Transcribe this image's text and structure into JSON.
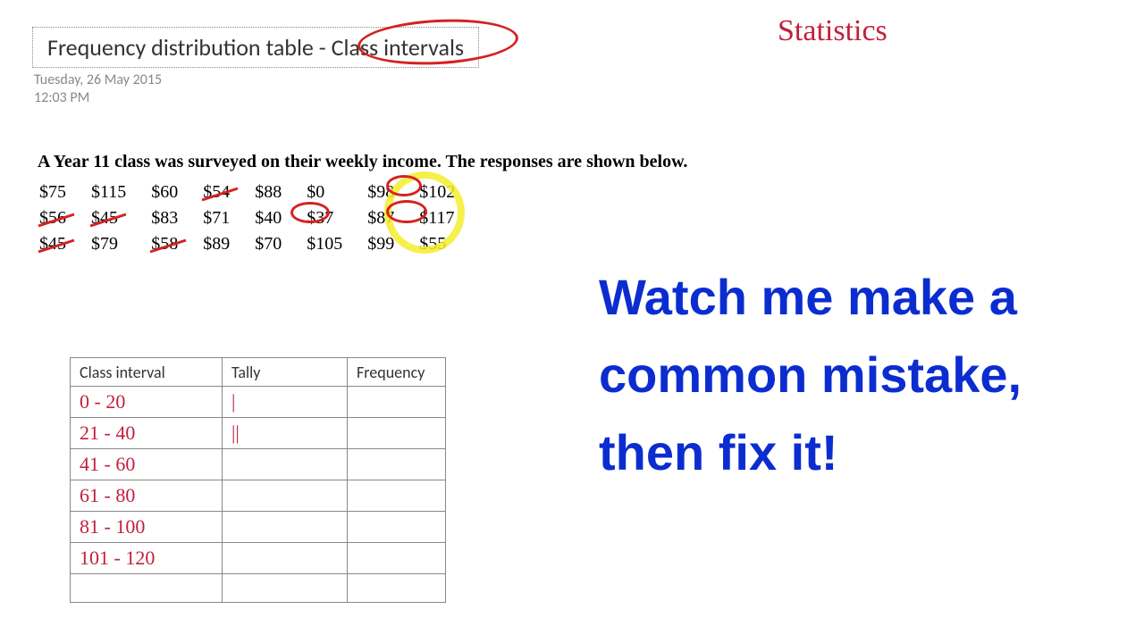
{
  "header": {
    "title": "Frequency distribution table - Class intervals",
    "date": "Tuesday, 26 May 2015",
    "time": "12:03 PM"
  },
  "topic_handwritten": "Statistics",
  "question": "A Year 11 class was surveyed on their weekly income. The responses are shown below.",
  "data_rows": [
    [
      "$75",
      "$115",
      "$60",
      "$54",
      "$88",
      "$0",
      "$98",
      "$102"
    ],
    [
      "$56",
      "$45",
      "$83",
      "$71",
      "$40",
      "$37",
      "$87",
      "$117"
    ],
    [
      "$45",
      "$79",
      "$58",
      "$89",
      "$70",
      "$105",
      "$99",
      "$55"
    ]
  ],
  "struck": [
    [
      2,
      0
    ],
    [
      1,
      0
    ],
    [
      1,
      1
    ],
    [
      2,
      2
    ],
    [
      0,
      3
    ]
  ],
  "annotations": {
    "red_circle_title": {
      "color": "#d4221f"
    },
    "red_oval_40": {
      "color": "#d4221f"
    },
    "red_oval_37": {
      "color": "#d4221f"
    },
    "yellow_ring": {
      "color": "#f4ed2b"
    }
  },
  "freq_table": {
    "headers": [
      "Class interval",
      "Tally",
      "Frequency"
    ],
    "rows": [
      {
        "interval": "0 - 20",
        "tally": "|",
        "freq": ""
      },
      {
        "interval": "21 - 40",
        "tally": "||",
        "freq": ""
      },
      {
        "interval": "41 - 60",
        "tally": "",
        "freq": ""
      },
      {
        "interval": "61 - 80",
        "tally": "",
        "freq": ""
      },
      {
        "interval": "81 - 100",
        "tally": "",
        "freq": ""
      },
      {
        "interval": "101 - 120",
        "tally": "",
        "freq": ""
      },
      {
        "interval": "",
        "tally": "",
        "freq": ""
      }
    ]
  },
  "caption": "Watch me make a common mistake, then fix it!",
  "colors": {
    "annotation_red": "#d4221f",
    "handwriting_red": "#c21f3a",
    "caption_blue": "#0b2dd0",
    "highlight_yellow": "#f4ed2b",
    "meta_grey": "#888888",
    "background": "#ffffff"
  },
  "typography": {
    "title_fontsize": 26,
    "meta_fontsize": 16,
    "question_fontsize": 20,
    "caption_fontsize": 56,
    "handwriting_fontsize": 22,
    "topic_fontsize": 34
  }
}
